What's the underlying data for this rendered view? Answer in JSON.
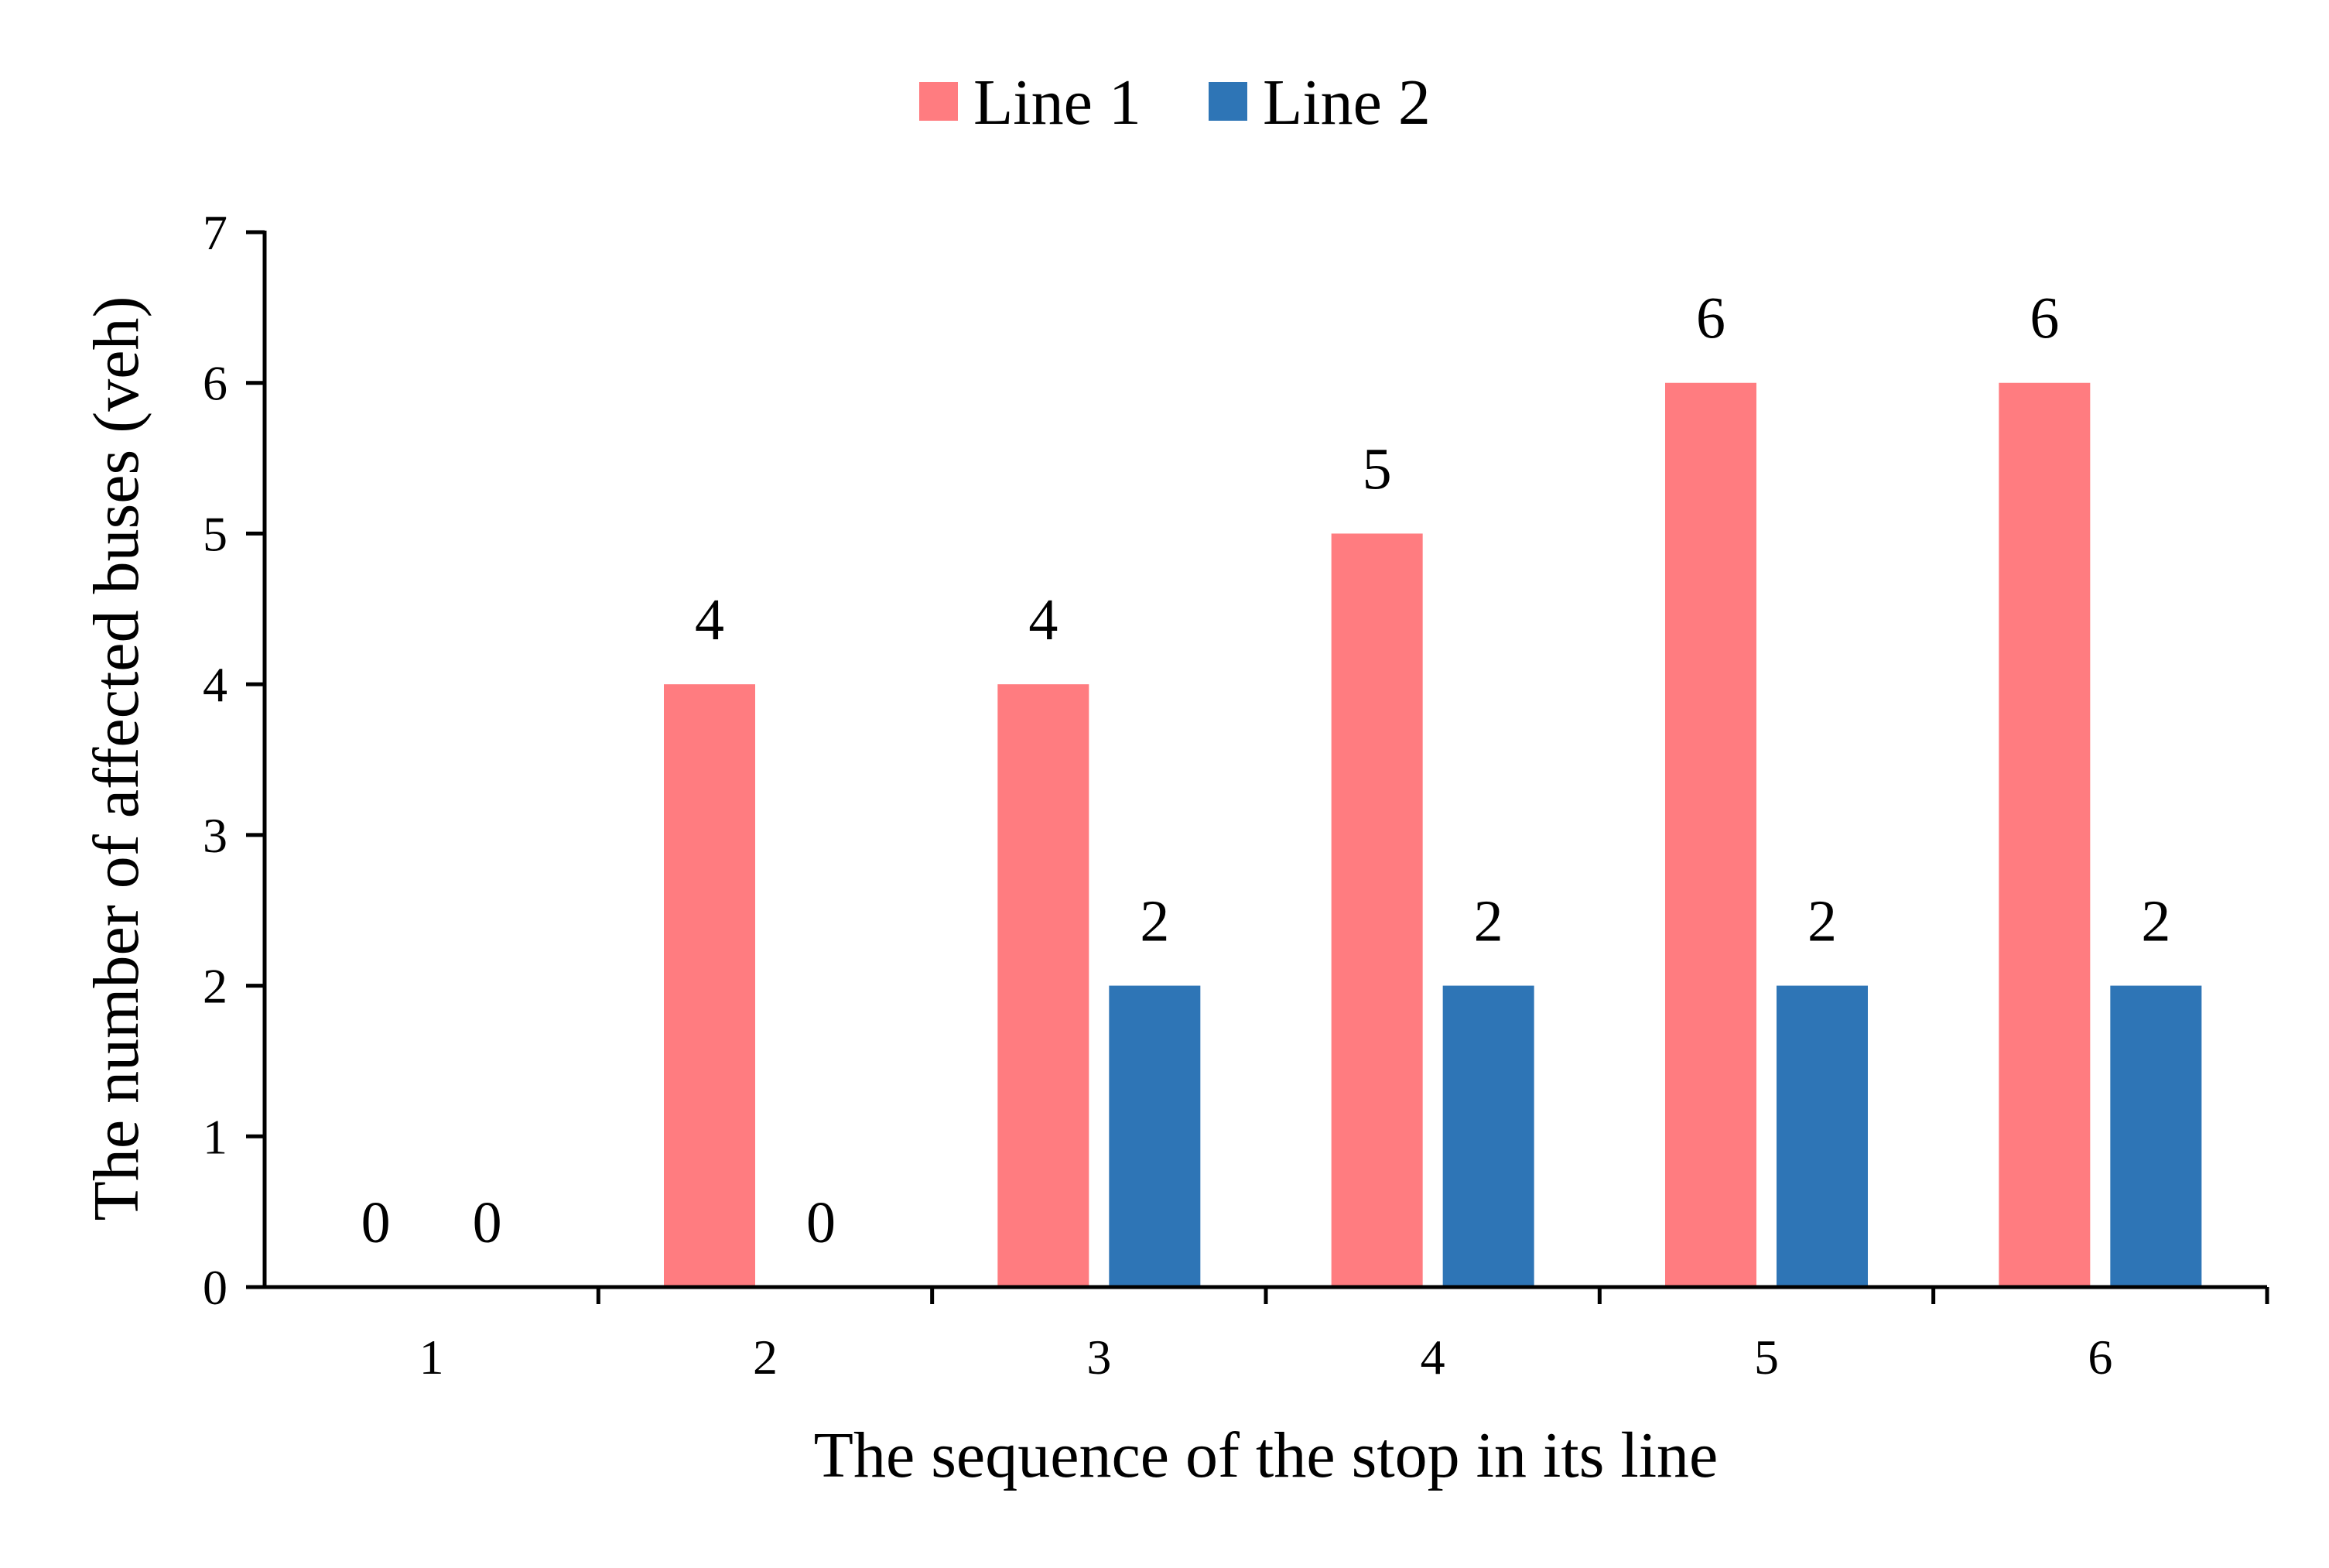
{
  "chart_data": {
    "type": "bar",
    "title": "",
    "xlabel": "The sequence of the stop in its line",
    "ylabel": "The number of affected buses (veh)",
    "categories": [
      "1",
      "2",
      "3",
      "4",
      "5",
      "6"
    ],
    "series": [
      {
        "name": "Line 1",
        "color": "#ff7c80",
        "values": [
          0,
          4,
          4,
          5,
          6,
          6
        ]
      },
      {
        "name": "Line 2",
        "color": "#2e75b6",
        "values": [
          0,
          0,
          2,
          2,
          2,
          2
        ]
      }
    ],
    "ylim": [
      0,
      7
    ],
    "yticks": [
      "0",
      "1",
      "2",
      "3",
      "4",
      "5",
      "6",
      "7"
    ],
    "grid": false,
    "data_labels": true,
    "legend_position": "top-center"
  }
}
